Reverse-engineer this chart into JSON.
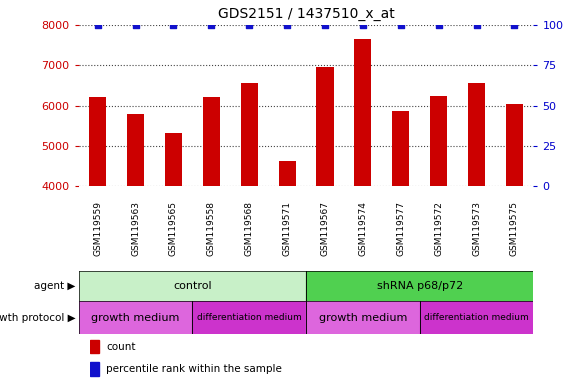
{
  "title": "GDS2151 / 1437510_x_at",
  "samples": [
    "GSM119559",
    "GSM119563",
    "GSM119565",
    "GSM119558",
    "GSM119568",
    "GSM119571",
    "GSM119567",
    "GSM119574",
    "GSM119577",
    "GSM119572",
    "GSM119573",
    "GSM119575"
  ],
  "counts": [
    6220,
    5800,
    5320,
    6220,
    6550,
    4630,
    6960,
    7650,
    5870,
    6230,
    6560,
    6050
  ],
  "bar_color": "#cc0000",
  "dot_color": "#1111cc",
  "ylim_left": [
    4000,
    8000
  ],
  "ylim_right": [
    0,
    100
  ],
  "yticks_left": [
    4000,
    5000,
    6000,
    7000,
    8000
  ],
  "yticks_right": [
    0,
    25,
    50,
    75,
    100
  ],
  "agent_row": [
    {
      "label": "control",
      "start": 0,
      "end": 6,
      "color": "#c8f0c8"
    },
    {
      "label": "shRNA p68/p72",
      "start": 6,
      "end": 12,
      "color": "#50d050"
    }
  ],
  "growth_row": [
    {
      "label": "growth medium",
      "start": 0,
      "end": 3,
      "color": "#dd66dd"
    },
    {
      "label": "differentiation medium",
      "start": 3,
      "end": 6,
      "color": "#cc33cc"
    },
    {
      "label": "growth medium",
      "start": 6,
      "end": 9,
      "color": "#dd66dd"
    },
    {
      "label": "differentiation medium",
      "start": 9,
      "end": 12,
      "color": "#cc33cc"
    }
  ],
  "agent_label": "agent",
  "growth_label": "growth protocol",
  "legend_count_label": "count",
  "legend_pct_label": "percentile rank within the sample",
  "tick_color_left": "#cc0000",
  "tick_color_right": "#0000cc",
  "xtick_bg_color": "#d8d8d8",
  "grid_color": "#444444",
  "grid_style": "dotted",
  "bar_width": 0.45
}
